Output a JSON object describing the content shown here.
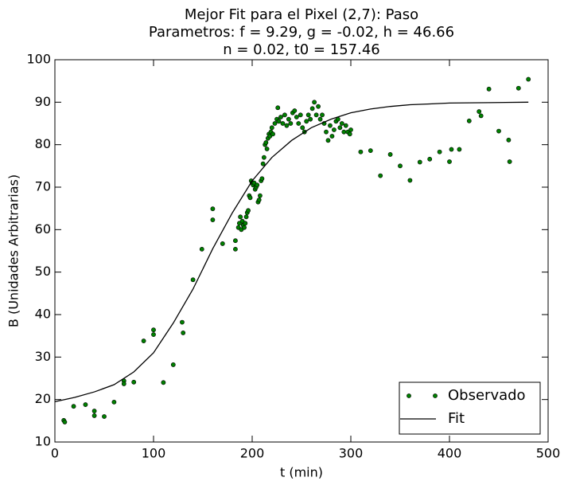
{
  "chart_data": {
    "type": "scatter",
    "title": [
      "Mejor Fit para el Pixel (2,7): Paso",
      "Parametros: f = 9.29, g = -0.02, h = 46.66",
      "n = 0.02, t0 = 157.46"
    ],
    "x_label": "t (min)",
    "y_label": "B (Unidades Arbitrarias)",
    "xlim": [
      0,
      500
    ],
    "ylim": [
      10,
      100
    ],
    "xticks": [
      0,
      100,
      200,
      300,
      400,
      500
    ],
    "yticks": [
      10,
      20,
      30,
      40,
      50,
      60,
      70,
      80,
      90,
      100
    ],
    "grid": false,
    "legend": "lower right",
    "series": [
      {
        "name": "Observado",
        "style": "markers",
        "color": "#008000",
        "x": [
          9,
          10,
          19,
          31,
          40,
          40,
          50,
          60,
          70,
          70,
          80,
          90,
          100,
          100,
          110,
          120,
          129,
          130,
          140,
          149,
          160,
          160,
          170,
          183,
          183,
          186,
          187,
          188,
          189,
          190,
          191,
          192,
          193,
          194,
          195,
          196,
          197,
          198,
          199,
          200,
          201,
          202,
          203,
          204,
          205,
          206,
          207,
          208,
          209,
          210,
          211,
          212,
          213,
          214,
          215,
          216,
          217,
          218,
          219,
          220,
          221,
          223,
          225,
          226,
          227,
          229,
          231,
          233,
          235,
          237,
          239,
          241,
          243,
          245,
          247,
          249,
          251,
          253,
          255,
          257,
          259,
          261,
          263,
          265,
          267,
          269,
          271,
          273,
          275,
          277,
          279,
          281,
          283,
          285,
          287,
          289,
          291,
          293,
          295,
          297,
          299,
          300,
          310,
          320,
          330,
          340,
          350,
          360,
          370,
          380,
          390,
          400,
          402,
          410,
          420,
          430,
          432,
          440,
          450,
          460,
          461,
          470,
          480
        ],
        "values": [
          15.1,
          14.7,
          18.4,
          18.8,
          17.3,
          16.2,
          16,
          19.4,
          24.4,
          23.7,
          24.1,
          33.8,
          36.4,
          35.3,
          24,
          28.2,
          38.2,
          35.7,
          48.2,
          55.4,
          62.3,
          64.9,
          56.7,
          55.4,
          57.4,
          60.5,
          61.5,
          63,
          60,
          62,
          61,
          60.5,
          61.5,
          63,
          64,
          64.5,
          68,
          67.5,
          71.5,
          71,
          70.5,
          71,
          69.5,
          70,
          70.5,
          66.5,
          67,
          68,
          71.5,
          72,
          75.5,
          77,
          80,
          80.5,
          79,
          81.5,
          82.5,
          82,
          83,
          84,
          82.5,
          85,
          86,
          88.7,
          85.5,
          86.5,
          85,
          87,
          84.5,
          86,
          85,
          87.5,
          88,
          86.5,
          85,
          87,
          84,
          83,
          85.5,
          87,
          86,
          88.5,
          90,
          87,
          89,
          86,
          87,
          85,
          83,
          81,
          84.5,
          82,
          83.5,
          85.5,
          86,
          84,
          85,
          83,
          84.5,
          83,
          82.5,
          83.5,
          78.3,
          78.6,
          72.7,
          77.7,
          75,
          71.6,
          75.9,
          76.6,
          78.3,
          76,
          78.9,
          78.9,
          85.6,
          87.8,
          86.8,
          93.1,
          83.2,
          81.1,
          76,
          93.3,
          95.4
        ]
      },
      {
        "name": "Fit",
        "style": "line",
        "color": "#000000",
        "x": [
          0,
          20,
          40,
          60,
          80,
          100,
          120,
          140,
          160,
          180,
          200,
          220,
          240,
          260,
          280,
          300,
          320,
          340,
          360,
          380,
          400,
          440,
          480
        ],
        "values": [
          19.5,
          20.5,
          21.8,
          23.5,
          26.5,
          31,
          38,
          46,
          55.5,
          64,
          71.5,
          77,
          81,
          84,
          86,
          87.5,
          88.4,
          89,
          89.4,
          89.6,
          89.8,
          89.9,
          90
        ]
      }
    ]
  }
}
